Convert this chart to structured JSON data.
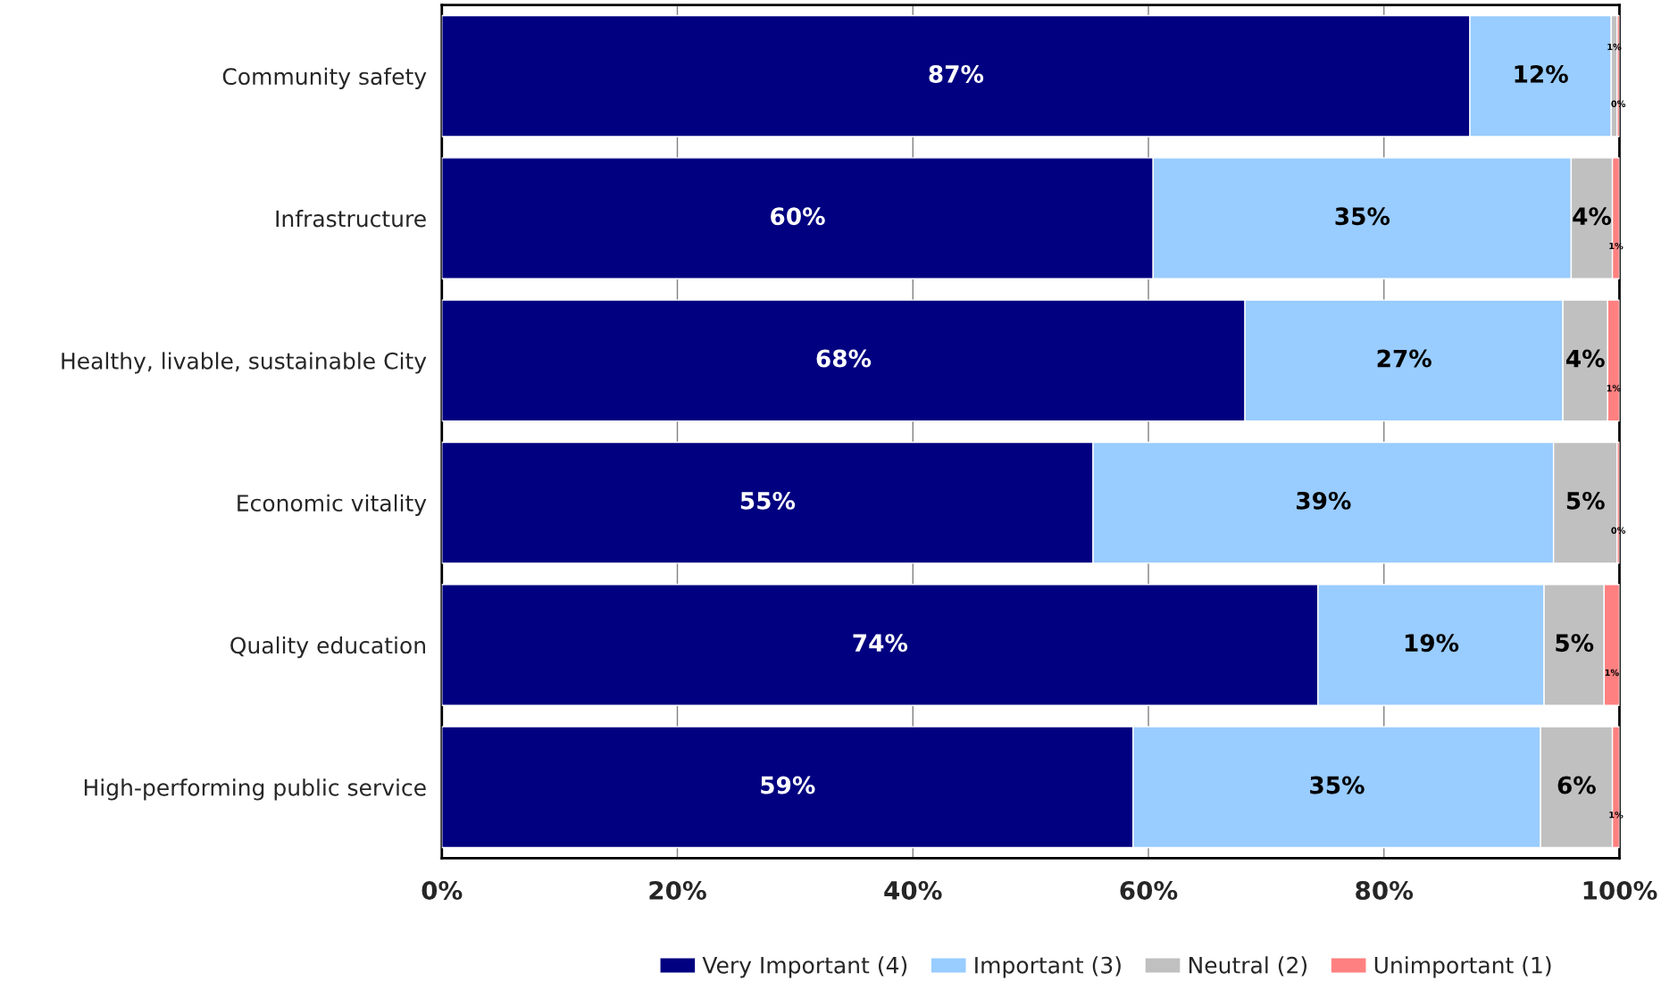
{
  "chart_data": {
    "type": "bar",
    "orientation": "horizontal",
    "stacked": true,
    "categories": [
      "Community safety",
      "Infrastructure",
      "Healthy, livable, sustainable City",
      "Economic vitality",
      "Quality education",
      "High-performing public service"
    ],
    "series": [
      {
        "name": "Very Important (4)",
        "color": "#000080",
        "values": [
          87.3,
          60.4,
          68.2,
          55.3,
          74.4,
          58.7
        ],
        "value_labels": [
          "87%",
          "60%",
          "68%",
          "55%",
          "74%",
          "59%"
        ]
      },
      {
        "name": "Important (3)",
        "color": "#99ccff",
        "values": [
          12.0,
          35.5,
          27.0,
          39.1,
          19.2,
          34.6
        ],
        "value_labels": [
          "12%",
          "35%",
          "27%",
          "39%",
          "19%",
          "35%"
        ]
      },
      {
        "name": "Neutral (2)",
        "color": "#c0c0c0",
        "values": [
          0.5,
          3.5,
          3.8,
          5.4,
          5.1,
          6.1
        ],
        "value_labels": [
          "1%",
          "4%",
          "4%",
          "5%",
          "5%",
          "6%"
        ]
      },
      {
        "name": "Unimportant (1)",
        "color": "#ff8080",
        "values": [
          0.2,
          0.6,
          1.0,
          0.2,
          1.3,
          0.6
        ],
        "value_labels": [
          "0%",
          "1%",
          "1%",
          "0%",
          "1%",
          "1%"
        ]
      }
    ],
    "xlim": [
      0,
      100
    ],
    "xticks": [
      {
        "value": 0,
        "label": "0%"
      },
      {
        "value": 20,
        "label": "20%"
      },
      {
        "value": 40,
        "label": "40%"
      },
      {
        "value": 60,
        "label": "60%"
      },
      {
        "value": 80,
        "label": "80%"
      },
      {
        "value": 100,
        "label": "100%"
      }
    ],
    "grid": "x",
    "legend": "bottom"
  }
}
